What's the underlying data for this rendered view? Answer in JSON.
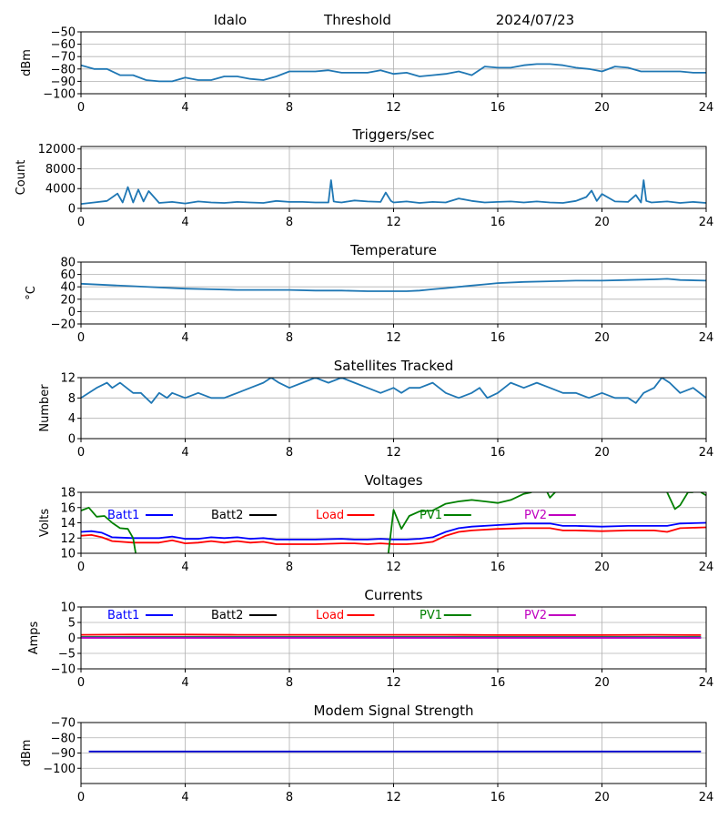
{
  "chart_data": [
    {
      "type": "line",
      "title_parts": [
        "Idalo",
        "Threshold",
        "2024/07/23"
      ],
      "ylabel": "dBm",
      "xlim": [
        0,
        24
      ],
      "xticks": [
        0,
        4,
        8,
        12,
        16,
        20,
        24
      ],
      "ylim": [
        -100,
        -50
      ],
      "yticks": [
        -100,
        -90,
        -80,
        -70,
        -60,
        -50
      ],
      "series": [
        {
          "color": "#1f77b4",
          "x": [
            0,
            0.5,
            1,
            1.5,
            2,
            2.5,
            3,
            3.5,
            4,
            4.5,
            5,
            5.5,
            6,
            6.5,
            7,
            7.5,
            8,
            8.5,
            9,
            9.5,
            10,
            10.5,
            11,
            11.5,
            12,
            12.5,
            13,
            13.5,
            14,
            14.5,
            15,
            15.5,
            16,
            16.5,
            17,
            17.5,
            18,
            18.5,
            19,
            19.5,
            20,
            20.5,
            21,
            21.5,
            22,
            22.5,
            23,
            23.5,
            24
          ],
          "y": [
            -77,
            -80,
            -80,
            -85,
            -85,
            -89,
            -90,
            -90,
            -87,
            -89,
            -89,
            -86,
            -86,
            -88,
            -89,
            -86,
            -82,
            -82,
            -82,
            -81,
            -83,
            -83,
            -83,
            -81,
            -84,
            -83,
            -86,
            -85,
            -84,
            -82,
            -85,
            -78,
            -79,
            -79,
            -77,
            -76,
            -76,
            -77,
            -79,
            -80,
            -82,
            -78,
            -79,
            -82,
            -82,
            -82,
            -82,
            -83,
            -83
          ]
        }
      ]
    },
    {
      "type": "line",
      "title": "Triggers/sec",
      "ylabel": "Count",
      "xlim": [
        0,
        24
      ],
      "xticks": [
        0,
        4,
        8,
        12,
        16,
        20,
        24
      ],
      "ylim": [
        0,
        12500
      ],
      "yticks": [
        0,
        4000,
        8000,
        12000
      ],
      "series": [
        {
          "color": "#1f77b4",
          "x": [
            0,
            0.5,
            1,
            1.4,
            1.6,
            1.8,
            2,
            2.2,
            2.4,
            2.6,
            3,
            3.5,
            4,
            4.5,
            5,
            5.5,
            6,
            6.5,
            7,
            7.5,
            8,
            8.5,
            9,
            9.5,
            9.6,
            9.7,
            9.8,
            10,
            10.5,
            11,
            11.5,
            11.7,
            11.9,
            12,
            12.5,
            13,
            13.5,
            14,
            14.5,
            15,
            15.5,
            16,
            16.5,
            17,
            17.5,
            18,
            18.5,
            19,
            19.4,
            19.6,
            19.8,
            20,
            20.5,
            21,
            21.3,
            21.5,
            21.6,
            21.7,
            21.9,
            22.5,
            23,
            23.5,
            24
          ],
          "y": [
            900,
            1200,
            1500,
            3000,
            1200,
            4300,
            1200,
            3800,
            1400,
            3500,
            1100,
            1300,
            1000,
            1400,
            1200,
            1100,
            1300,
            1200,
            1100,
            1500,
            1300,
            1300,
            1200,
            1200,
            5700,
            1400,
            1300,
            1200,
            1600,
            1400,
            1300,
            3200,
            1500,
            1200,
            1400,
            1100,
            1300,
            1200,
            2000,
            1500,
            1200,
            1300,
            1400,
            1200,
            1400,
            1200,
            1100,
            1500,
            2300,
            3600,
            1500,
            2900,
            1400,
            1300,
            2700,
            1200,
            5700,
            1500,
            1200,
            1400,
            1100,
            1300,
            1100
          ]
        }
      ]
    },
    {
      "type": "line",
      "title": "Temperature",
      "ylabel": "°C",
      "xlim": [
        0,
        24
      ],
      "xticks": [
        0,
        4,
        8,
        12,
        16,
        20,
        24
      ],
      "ylim": [
        -20,
        80
      ],
      "yticks": [
        -20,
        0,
        20,
        40,
        60,
        80
      ],
      "series": [
        {
          "color": "#1f77b4",
          "x": [
            0,
            1,
            2,
            3,
            4,
            5,
            6,
            7,
            8,
            9,
            10,
            11,
            12,
            12.5,
            13,
            13.5,
            14,
            14.5,
            15,
            15.5,
            16,
            17,
            18,
            19,
            20,
            21,
            22,
            22.5,
            23,
            24
          ],
          "y": [
            45,
            43,
            41,
            39,
            37,
            36,
            35,
            35,
            35,
            34,
            34,
            33,
            33,
            33,
            34,
            36,
            38,
            40,
            42,
            44,
            46,
            48,
            49,
            50,
            50,
            51,
            52,
            53,
            51,
            50
          ]
        }
      ]
    },
    {
      "type": "line",
      "title": "Satellites Tracked",
      "ylabel": "Number",
      "xlim": [
        0,
        24
      ],
      "xticks": [
        0,
        4,
        8,
        12,
        16,
        20,
        24
      ],
      "ylim": [
        0,
        12
      ],
      "yticks": [
        0,
        4,
        8,
        12
      ],
      "series": [
        {
          "color": "#1f77b4",
          "x": [
            0,
            0.3,
            0.6,
            1,
            1.2,
            1.5,
            2,
            2.3,
            2.7,
            3,
            3.3,
            3.5,
            4,
            4.5,
            5,
            5.5,
            6,
            6.5,
            7,
            7.3,
            7.6,
            8,
            8.5,
            9,
            9.5,
            10,
            10.5,
            11,
            11.5,
            12,
            12.3,
            12.6,
            13,
            13.5,
            14,
            14.5,
            15,
            15.3,
            15.6,
            16,
            16.5,
            17,
            17.5,
            18,
            18.5,
            19,
            19.5,
            20,
            20.5,
            21,
            21.3,
            21.6,
            22,
            22.3,
            22.6,
            23,
            23.5,
            24
          ],
          "y": [
            8,
            9,
            10,
            11,
            10,
            11,
            9,
            9,
            7,
            9,
            8,
            9,
            8,
            9,
            8,
            8,
            9,
            10,
            11,
            12,
            11,
            10,
            11,
            12,
            11,
            12,
            11,
            10,
            9,
            10,
            9,
            10,
            10,
            11,
            9,
            8,
            9,
            10,
            8,
            9,
            11,
            10,
            11,
            10,
            9,
            9,
            8,
            9,
            8,
            8,
            7,
            9,
            10,
            12,
            11,
            9,
            10,
            8
          ]
        }
      ]
    },
    {
      "type": "line",
      "title": "Voltages",
      "ylabel": "Volts",
      "xlim": [
        0,
        24
      ],
      "xticks": [
        0,
        4,
        8,
        12,
        16,
        20,
        24
      ],
      "ylim": [
        10,
        18
      ],
      "yticks": [
        10,
        12,
        14,
        16,
        18
      ],
      "legend": [
        {
          "label": "Batt1",
          "color": "#0000ff"
        },
        {
          "label": "Batt2",
          "color": "#000000"
        },
        {
          "label": "Load",
          "color": "#ff0000"
        },
        {
          "label": "PV1",
          "color": "#008000"
        },
        {
          "label": "PV2",
          "color": "#c000c0"
        }
      ],
      "series": [
        {
          "name": "Batt1",
          "color": "#0000ff",
          "x": [
            0,
            0.4,
            0.8,
            1.2,
            2,
            3,
            3.5,
            4,
            4.5,
            5,
            5.5,
            6,
            6.5,
            7,
            7.5,
            8,
            8.5,
            9,
            10,
            10.5,
            11,
            11.5,
            12,
            12.5,
            13,
            13.5,
            14,
            14.5,
            15,
            16,
            17,
            18,
            18.5,
            19,
            20,
            21,
            22,
            22.5,
            23,
            24
          ],
          "y": [
            12.8,
            12.9,
            12.7,
            12.1,
            12.0,
            12.0,
            12.2,
            11.9,
            11.9,
            12.1,
            12.0,
            12.1,
            11.9,
            12.0,
            11.8,
            11.8,
            11.8,
            11.8,
            11.9,
            11.8,
            11.8,
            11.9,
            11.8,
            11.8,
            11.9,
            12.1,
            12.8,
            13.3,
            13.5,
            13.7,
            13.9,
            13.9,
            13.6,
            13.6,
            13.5,
            13.6,
            13.6,
            13.6,
            13.9,
            14.0
          ]
        },
        {
          "name": "Load",
          "color": "#ff0000",
          "x": [
            0,
            0.4,
            0.8,
            1.2,
            2,
            3,
            3.5,
            4,
            4.5,
            5,
            5.5,
            6,
            6.5,
            7,
            7.5,
            8,
            8.5,
            9,
            10,
            10.5,
            11,
            11.5,
            12,
            12.5,
            13,
            13.5,
            14,
            14.5,
            15,
            16,
            17,
            18,
            18.5,
            19,
            20,
            21,
            22,
            22.5,
            23,
            24
          ],
          "y": [
            12.3,
            12.4,
            12.1,
            11.6,
            11.4,
            11.4,
            11.7,
            11.3,
            11.4,
            11.6,
            11.4,
            11.6,
            11.4,
            11.5,
            11.2,
            11.2,
            11.2,
            11.2,
            11.3,
            11.3,
            11.2,
            11.3,
            11.2,
            11.2,
            11.3,
            11.5,
            12.3,
            12.8,
            13.0,
            13.2,
            13.3,
            13.3,
            13.0,
            13.0,
            12.9,
            13.0,
            13.0,
            12.8,
            13.3,
            13.4
          ]
        },
        {
          "name": "PV1",
          "color": "#008000",
          "segments": [
            {
              "x": [
                0,
                0.3,
                0.6,
                0.9,
                1.2,
                1.5,
                1.8,
                2.0,
                2.1
              ],
              "y": [
                15.6,
                16.0,
                14.8,
                14.9,
                14.0,
                13.3,
                13.2,
                12.0,
                10.0
              ]
            },
            {
              "x": [
                11.8,
                12.0,
                12.3,
                12.6,
                13.0,
                13.5,
                14.0,
                14.5,
                15,
                15.5,
                16,
                16.5,
                17,
                17.3
              ],
              "y": [
                10.0,
                15.7,
                13.2,
                14.9,
                15.5,
                15.6,
                16.5,
                16.8,
                17.0,
                16.8,
                16.6,
                17.0,
                17.8,
                18.0
              ]
            },
            {
              "x": [
                17.9,
                18.0,
                18.2
              ],
              "y": [
                18.0,
                17.3,
                18.0
              ]
            },
            {
              "x": [
                22.5,
                22.8,
                23.0,
                23.3,
                23.5
              ],
              "y": [
                18.0,
                15.8,
                16.3,
                18.0,
                18.0
              ]
            },
            {
              "x": [
                23.8,
                24.0
              ],
              "y": [
                18.0,
                17.6
              ]
            }
          ]
        }
      ]
    },
    {
      "type": "line",
      "title": "Currents",
      "ylabel": "Amps",
      "xlim": [
        0,
        24
      ],
      "xticks": [
        0,
        4,
        8,
        12,
        16,
        20,
        24
      ],
      "ylim": [
        -10,
        10
      ],
      "yticks": [
        -10,
        -5,
        0,
        5,
        10
      ],
      "legend": [
        {
          "label": "Batt1",
          "color": "#0000ff"
        },
        {
          "label": "Batt2",
          "color": "#000000"
        },
        {
          "label": "Load",
          "color": "#ff0000"
        },
        {
          "label": "PV1",
          "color": "#008000"
        },
        {
          "label": "PV2",
          "color": "#c000c0"
        }
      ],
      "series": [
        {
          "name": "Load",
          "color": "#ff0000",
          "x": [
            0,
            2,
            4,
            6,
            8,
            10,
            12,
            14,
            16,
            18,
            20,
            22,
            23.8
          ],
          "y": [
            1.0,
            1.1,
            1.1,
            1.0,
            1.0,
            1.0,
            1.0,
            1.0,
            0.9,
            0.9,
            0.9,
            1.0,
            0.9
          ]
        },
        {
          "name": "PV1",
          "color": "#008000",
          "x": [
            0,
            4,
            8,
            12,
            16,
            20,
            23.8
          ],
          "y": [
            0.3,
            0.3,
            0.3,
            0.3,
            0.3,
            0.3,
            0.3
          ]
        },
        {
          "name": "Batt1",
          "color": "#0000ff",
          "x": [
            0,
            4,
            8,
            12,
            16,
            20,
            23.8
          ],
          "y": [
            0.1,
            0.1,
            0.1,
            0.1,
            0.1,
            0.1,
            0.1
          ]
        },
        {
          "name": "PV2",
          "color": "#c000c0",
          "x": [
            0,
            4,
            8,
            12,
            16,
            20,
            23.8
          ],
          "y": [
            0.0,
            0.0,
            0.0,
            0.0,
            0.0,
            0.0,
            0.0
          ]
        }
      ]
    },
    {
      "type": "line",
      "title": "Modem Signal Strength",
      "ylabel": "dBm",
      "xlim": [
        0,
        24
      ],
      "xticks": [
        0,
        4,
        8,
        12,
        16,
        20,
        24
      ],
      "ylim": [
        -110,
        -70
      ],
      "yticks": [
        -100,
        -90,
        -80,
        -70
      ],
      "series": [
        {
          "color": "#0000cc",
          "x": [
            0.3,
            23.8
          ],
          "y": [
            -89,
            -89
          ]
        }
      ]
    }
  ]
}
